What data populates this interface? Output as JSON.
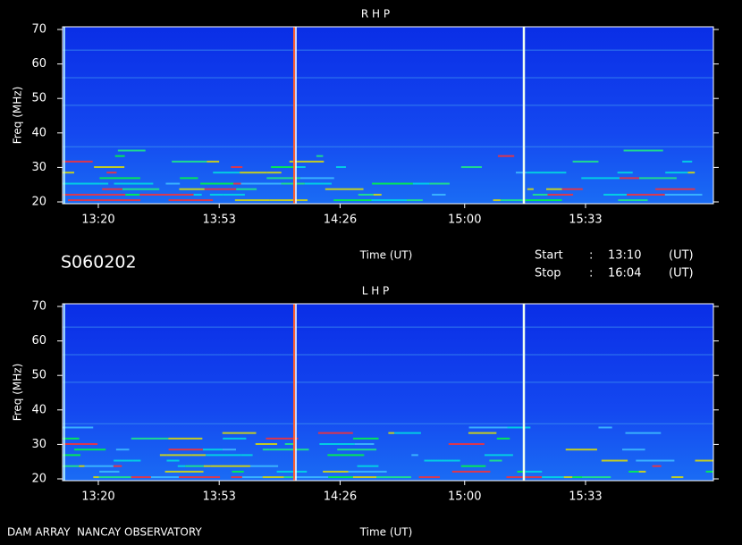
{
  "observation_id": "S060202",
  "start_label": "Start",
  "stop_label": "Stop",
  "separator": ":",
  "time_unit": "(UT)",
  "footer": "DAM ARRAY  NANCAY OBSERVATORY",
  "chart_data": [
    {
      "type": "spectrogram",
      "title": "R H P",
      "xlabel": "Time (UT)",
      "ylabel": "Freq (MHz)",
      "xlim": [
        "13:10",
        "16:04"
      ],
      "xticks": [
        "13:20",
        "13:53",
        "14:26",
        "15:00",
        "15:33"
      ],
      "ylim": [
        20,
        70
      ],
      "yticks": [
        20,
        30,
        40,
        50,
        60,
        70
      ]
    },
    {
      "type": "spectrogram",
      "title": "L H P",
      "xlabel": "Time (UT)",
      "ylabel": "Freq (MHz)",
      "xlim": [
        "13:10",
        "16:04"
      ],
      "xticks": [
        "13:20",
        "13:53",
        "14:26",
        "15:00",
        "15:33"
      ],
      "ylim": [
        20,
        70
      ],
      "yticks": [
        20,
        30,
        40,
        50,
        60,
        70
      ]
    }
  ]
}
